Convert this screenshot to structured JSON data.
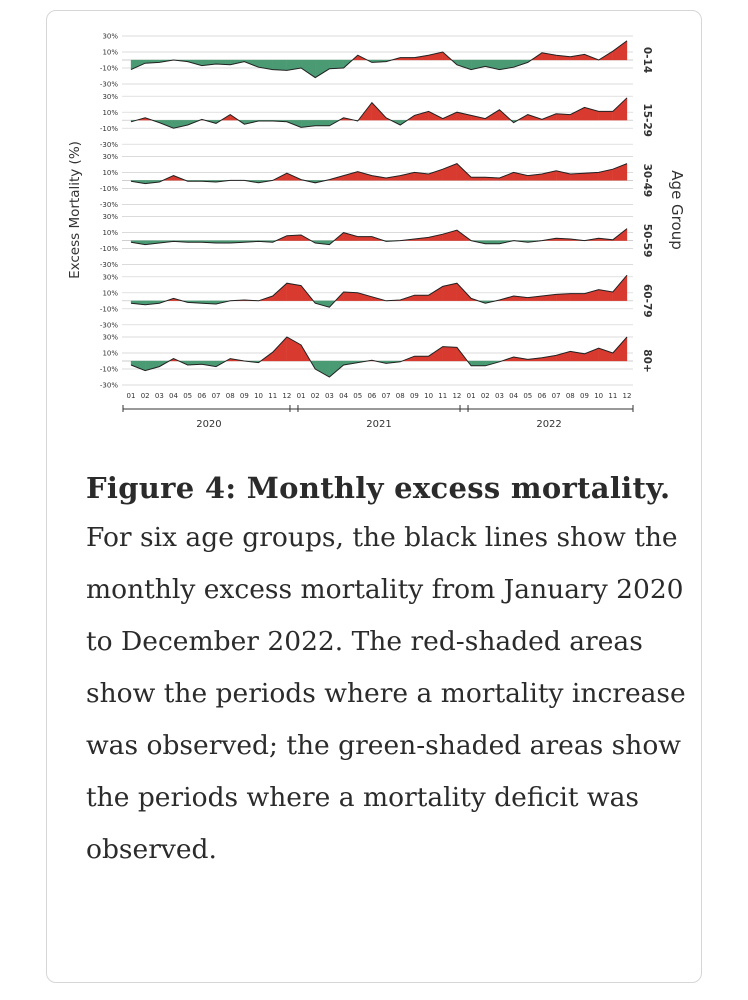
{
  "chart_data": {
    "type": "area",
    "ylabel": "Excess Mortality (%)",
    "right_label": "Age Group",
    "y_ticks": [
      "30%",
      "10%",
      "-10%",
      "-30%"
    ],
    "ylim": [
      -30,
      30
    ],
    "months": [
      "01",
      "02",
      "03",
      "04",
      "05",
      "06",
      "07",
      "08",
      "09",
      "10",
      "11",
      "12",
      "01",
      "02",
      "03",
      "04",
      "05",
      "06",
      "07",
      "08",
      "09",
      "10",
      "11",
      "12",
      "01",
      "02",
      "03",
      "04",
      "05",
      "06",
      "07",
      "08",
      "09",
      "10",
      "11",
      "12"
    ],
    "years": [
      "2020",
      "2021",
      "2022"
    ],
    "colors": {
      "increase": "#d93a2f",
      "deficit": "#4a9a74",
      "line": "#222222"
    },
    "series": [
      {
        "name": "0-14",
        "values": [
          -12,
          -4,
          -3,
          0,
          -2,
          -7,
          -5,
          -6,
          -2,
          -9,
          -12,
          -13,
          -10,
          -22,
          -11,
          -10,
          6,
          -3,
          -2,
          3,
          3,
          6,
          10,
          -6,
          -12,
          -8,
          -12,
          -9,
          -3,
          9,
          6,
          4,
          7,
          0,
          11,
          24
        ]
      },
      {
        "name": "15-29",
        "values": [
          -2,
          3,
          -3,
          -10,
          -6,
          1,
          -4,
          7,
          -5,
          -1,
          -1,
          -2,
          -9,
          -7,
          -7,
          3,
          -1,
          22,
          3,
          -6,
          6,
          11,
          2,
          10,
          6,
          2,
          13,
          -3,
          7,
          1,
          8,
          7,
          16,
          11,
          11,
          28
        ]
      },
      {
        "name": "30-49",
        "values": [
          -1,
          -4,
          -2,
          6,
          -1,
          -1,
          -2,
          0,
          0,
          -3,
          0,
          9,
          1,
          -3,
          1,
          6,
          11,
          6,
          3,
          6,
          10,
          8,
          14,
          21,
          4,
          4,
          3,
          10,
          6,
          8,
          12,
          8,
          9,
          10,
          14,
          21
        ]
      },
      {
        "name": "50-59",
        "values": [
          -2,
          -5,
          -3,
          -1,
          -2,
          -2,
          -3,
          -3,
          -2,
          -1,
          -2,
          6,
          7,
          -3,
          -5,
          10,
          5,
          5,
          -1,
          0,
          2,
          4,
          8,
          13,
          0,
          -4,
          -4,
          0,
          -2,
          0,
          3,
          2,
          0,
          3,
          1,
          15
        ]
      },
      {
        "name": "60-79",
        "values": [
          -3,
          -5,
          -3,
          3,
          -2,
          -3,
          -4,
          0,
          1,
          0,
          6,
          22,
          19,
          -3,
          -8,
          11,
          10,
          5,
          0,
          1,
          7,
          7,
          18,
          22,
          3,
          -3,
          1,
          6,
          4,
          6,
          8,
          9,
          9,
          14,
          11,
          32
        ]
      },
      {
        "name": "80+",
        "values": [
          -5,
          -12,
          -7,
          3,
          -5,
          -4,
          -7,
          3,
          0,
          -2,
          11,
          30,
          20,
          -10,
          -20,
          -5,
          -2,
          1,
          -3,
          -1,
          6,
          6,
          18,
          17,
          -6,
          -6,
          -1,
          5,
          2,
          4,
          7,
          12,
          9,
          16,
          10,
          30
        ]
      }
    ]
  },
  "caption": {
    "title": "Figure 4: Monthly excess mortality.",
    "body": "For six age groups, the black lines show the monthly excess mortality from January 2020 to December 2022. The red-shaded areas show the periods where a mortality increase was observed; the green-shaded areas show the periods where a mortality deficit was observed."
  }
}
